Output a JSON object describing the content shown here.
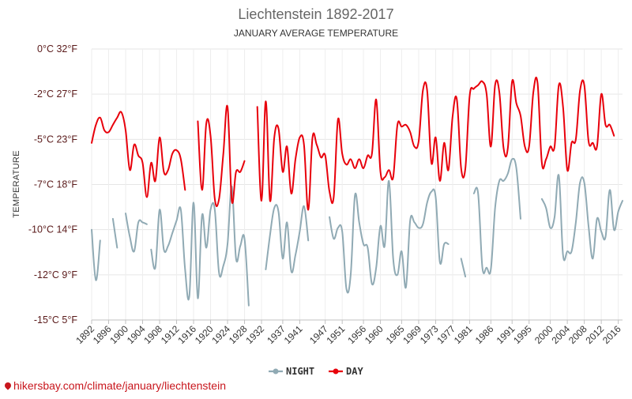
{
  "chart_data": {
    "type": "line",
    "title": "Liechtenstein 1892-2017",
    "subtitle": "JANUARY AVERAGE TEMPERATURE",
    "ylabel": "TEMPERATURE",
    "xlabel": "",
    "ylim": [
      -15,
      0
    ],
    "xlim": [
      1892,
      2017
    ],
    "grid": true,
    "legend_position": "bottom-center",
    "y_ticks": [
      {
        "value": 0,
        "label": "0°C 32°F"
      },
      {
        "value": -2.5,
        "label": "-2°C 27°F"
      },
      {
        "value": -5,
        "label": "-5°C 23°F"
      },
      {
        "value": -7.5,
        "label": "-7°C 18°F"
      },
      {
        "value": -10,
        "label": "-10°C 14°F"
      },
      {
        "value": -12.5,
        "label": "-12°C 9°F"
      },
      {
        "value": -15,
        "label": "-15°C 5°F"
      }
    ],
    "x_ticks": [
      1892,
      1896,
      1900,
      1904,
      1908,
      1912,
      1916,
      1920,
      1924,
      1928,
      1932,
      1937,
      1941,
      1947,
      1951,
      1956,
      1960,
      1965,
      1969,
      1973,
      1977,
      1981,
      1986,
      1991,
      1995,
      2000,
      2004,
      2008,
      2012,
      2016
    ],
    "series": [
      {
        "name": "NIGHT",
        "color": "#90aab4",
        "x": [
          1892,
          1893,
          1894,
          1895,
          null,
          1897,
          1898,
          null,
          1900,
          1901,
          1902,
          1903,
          1904,
          1905,
          null,
          1906,
          1907,
          1908,
          1909,
          1910,
          1911,
          1912,
          1913,
          1914,
          1915,
          1916,
          1917,
          1918,
          1919,
          1920,
          1921,
          1922,
          1923,
          1924,
          1925,
          1926,
          1927,
          1928,
          1929,
          1930,
          1931,
          null,
          1933,
          1934,
          1935,
          1936,
          1937,
          1938,
          1939,
          1940,
          1941,
          1942,
          1943,
          1944,
          1945,
          1946,
          null,
          1948,
          1949,
          1950,
          1951,
          1952,
          1953,
          1954,
          1955,
          1956,
          1957,
          1958,
          1959,
          1960,
          1961,
          1962,
          1963,
          1964,
          1965,
          1966,
          1967,
          1968,
          1969,
          1970,
          1971,
          1972,
          1973,
          1974,
          1975,
          1976,
          1977,
          1978,
          1979,
          1980,
          null,
          1982,
          1983,
          1984,
          1985,
          1986,
          1987,
          1988,
          1989,
          1990,
          1991,
          1992,
          1993,
          1994,
          1995,
          null,
          1998,
          1999,
          2000,
          2001,
          2002,
          2003,
          2004,
          2005,
          2006,
          2007,
          2008,
          2009,
          2010,
          2011,
          2012,
          2013,
          2014,
          2015,
          2016,
          2017
        ],
        "values": [
          -10,
          -12.8,
          -10.6,
          null,
          null,
          -9.4,
          -11,
          null,
          -9.1,
          -10.4,
          -11.2,
          -9.6,
          -9.6,
          -9.7,
          null,
          -11.1,
          -12.1,
          -8.9,
          -11.1,
          -10.9,
          -10.2,
          -9.5,
          -8.9,
          -12.2,
          -13.7,
          -8.5,
          -13.8,
          -9.2,
          -11,
          -8.9,
          -8.9,
          -12.4,
          -12,
          -10.8,
          -7.6,
          -11.6,
          -10.9,
          -10.5,
          -14.2,
          null,
          null,
          null,
          -12.2,
          -10.3,
          -8.8,
          -9,
          -11.6,
          -9.6,
          -12.3,
          -11.4,
          -10.1,
          -8.7,
          -10.6,
          null,
          null,
          null,
          null,
          -9.3,
          -10.5,
          -9.9,
          -10.1,
          -13.3,
          -12.5,
          -8.1,
          -9.6,
          -10.8,
          -11,
          -13,
          -12.1,
          -9.8,
          -10.9,
          -7.3,
          -11.6,
          -12.5,
          -11.2,
          -13.2,
          -9.5,
          -9.6,
          -9.9,
          -9.7,
          -8.5,
          -7.9,
          -8.2,
          -11.8,
          -10.8,
          -10.8,
          null,
          null,
          -11.6,
          -12.6,
          null,
          -8,
          -8,
          -12.1,
          -12.1,
          -12.2,
          -8.8,
          -7.3,
          -7.3,
          -6.9,
          -6.1,
          -6.6,
          -9.4,
          null,
          null,
          null,
          -8.3,
          -8.8,
          -9.9,
          -9.3,
          -7,
          -11.4,
          -11.2,
          -11.2,
          -9.6,
          -7.4,
          -7.4,
          -9.8,
          -11.6,
          -9.4,
          -10.1,
          -10.4,
          -7.8,
          -10,
          -9,
          -8.4
        ]
      },
      {
        "name": "DAY",
        "color": "#e8000b",
        "x": [
          1892,
          1893,
          1894,
          1895,
          1896,
          1897,
          1898,
          1899,
          1900,
          1901,
          1902,
          1903,
          1904,
          1905,
          1906,
          1907,
          1908,
          1909,
          1910,
          1911,
          1912,
          1913,
          1914,
          1915,
          1916,
          1917,
          1918,
          1919,
          1920,
          1921,
          1922,
          1923,
          1924,
          1925,
          1926,
          1927,
          1928,
          1929,
          1930,
          1931,
          1932,
          1933,
          1934,
          1935,
          1936,
          1937,
          1938,
          1939,
          1940,
          1941,
          1942,
          1943,
          1944,
          1945,
          1946,
          1947,
          1948,
          1949,
          1950,
          1951,
          1952,
          1953,
          1954,
          1955,
          1956,
          1957,
          1958,
          1959,
          1960,
          1961,
          1962,
          1963,
          1964,
          1965,
          1966,
          1967,
          1968,
          1969,
          1970,
          1971,
          1972,
          1973,
          1974,
          1975,
          1976,
          1977,
          1978,
          1979,
          1980,
          1981,
          1982,
          1983,
          1984,
          1985,
          1986,
          1987,
          1988,
          1989,
          1990,
          1991,
          1992,
          1993,
          1994,
          1995,
          1996,
          1997,
          1998,
          1999,
          2000,
          2001,
          2002,
          2003,
          2004,
          2005,
          2006,
          2007,
          2008,
          2009,
          2010,
          2011,
          2012,
          2013,
          2014,
          2015,
          2016,
          2017
        ],
        "values": [
          -5.2,
          -4.2,
          -3.8,
          -4.5,
          -4.6,
          -4.2,
          -3.8,
          -3.5,
          -4.5,
          -6.7,
          -5.3,
          -5.9,
          -6.3,
          -8.2,
          -6.3,
          -7.3,
          -4.9,
          -6.8,
          -6.7,
          -5.8,
          -5.6,
          -6.1,
          -7.8,
          null,
          null,
          -4,
          -7.8,
          -4.1,
          -4.8,
          -8.3,
          -8.3,
          -5.8,
          -3.2,
          -8.4,
          -6.8,
          -6.8,
          -6.2,
          null,
          null,
          -3.2,
          -8.4,
          -2.9,
          -8.4,
          -4.9,
          -4.4,
          -6.8,
          -5.4,
          -8,
          -6.1,
          -4.9,
          -5.3,
          -8.9,
          -4.9,
          -5.3,
          -6,
          -5.9,
          -7.9,
          -8.2,
          -3.9,
          -5.8,
          -6.4,
          -6.1,
          -6.6,
          -6.1,
          -6.6,
          -5.9,
          -5.8,
          -2.8,
          -6.8,
          -7.1,
          -6.7,
          -7.1,
          -4.2,
          -4.3,
          -4.2,
          -4.6,
          -5.4,
          -5.1,
          -2.3,
          -2.3,
          -6.3,
          -4.9,
          -7.3,
          -5.2,
          -6.7,
          -3.7,
          -2.8,
          -6.6,
          -6.6,
          -2.6,
          -2.2,
          -2,
          -1.8,
          -2.5,
          -5.4,
          -2,
          -2.4,
          -5.5,
          -5.5,
          -1.8,
          -3,
          -3.7,
          -5.4,
          -5.4,
          -2.4,
          -1.9,
          -6.3,
          -6.1,
          -5.4,
          -5.4,
          -2,
          -3.2,
          -6.7,
          -5.2,
          -5,
          -2.3,
          -2,
          -5.1,
          -5.2,
          -5.4,
          -2.5,
          -4.2,
          -4.2,
          -4.8,
          null,
          null
        ]
      }
    ]
  },
  "legend": {
    "night_label": "NIGHT",
    "day_label": "DAY"
  },
  "watermark": "hikersbay.com/climate/january/liechtenstein"
}
